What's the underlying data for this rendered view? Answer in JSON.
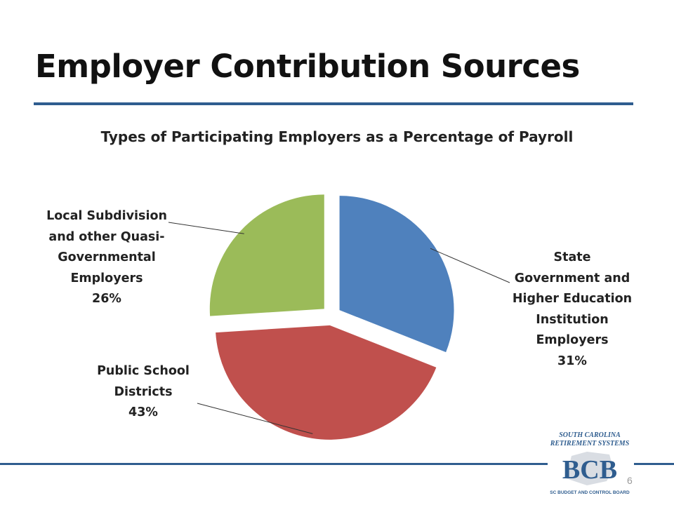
{
  "slide": {
    "title": "Employer Contribution Sources",
    "page_number": "6"
  },
  "logo": {
    "line1": "SOUTH CAROLINA",
    "line2": "RETIREMENT SYSTEMS",
    "mark": "BCB",
    "tagline": "SC BUDGET AND CONTROL BOARD"
  },
  "colors": {
    "accent": "#2f5d8f",
    "state": "#4f81bd",
    "school": "#c0504d",
    "local": "#9bbb59"
  },
  "chart_data": {
    "type": "pie",
    "title": "Types of Participating Employers as a Percentage of Payroll",
    "slices": [
      {
        "lines": [
          "State",
          "Government and",
          "Higher Education",
          "Institution",
          "Employers"
        ],
        "label": "State Government and Higher Education Institution Employers",
        "value": 31,
        "value_label": "31%",
        "color": "#4f81bd"
      },
      {
        "lines": [
          "Public School",
          "Districts"
        ],
        "label": "Public School Districts",
        "value": 43,
        "value_label": "43%",
        "color": "#c0504d"
      },
      {
        "lines": [
          "Local Subdivision",
          "and other Quasi-",
          "Governmental",
          "Employers"
        ],
        "label": "Local Subdivision and other Quasi-Governmental Employers",
        "value": 26,
        "value_label": "26%",
        "color": "#9bbb59"
      }
    ],
    "start_angle": "12 o'clock",
    "direction": "clockwise",
    "exploded": true,
    "legend": "none"
  }
}
